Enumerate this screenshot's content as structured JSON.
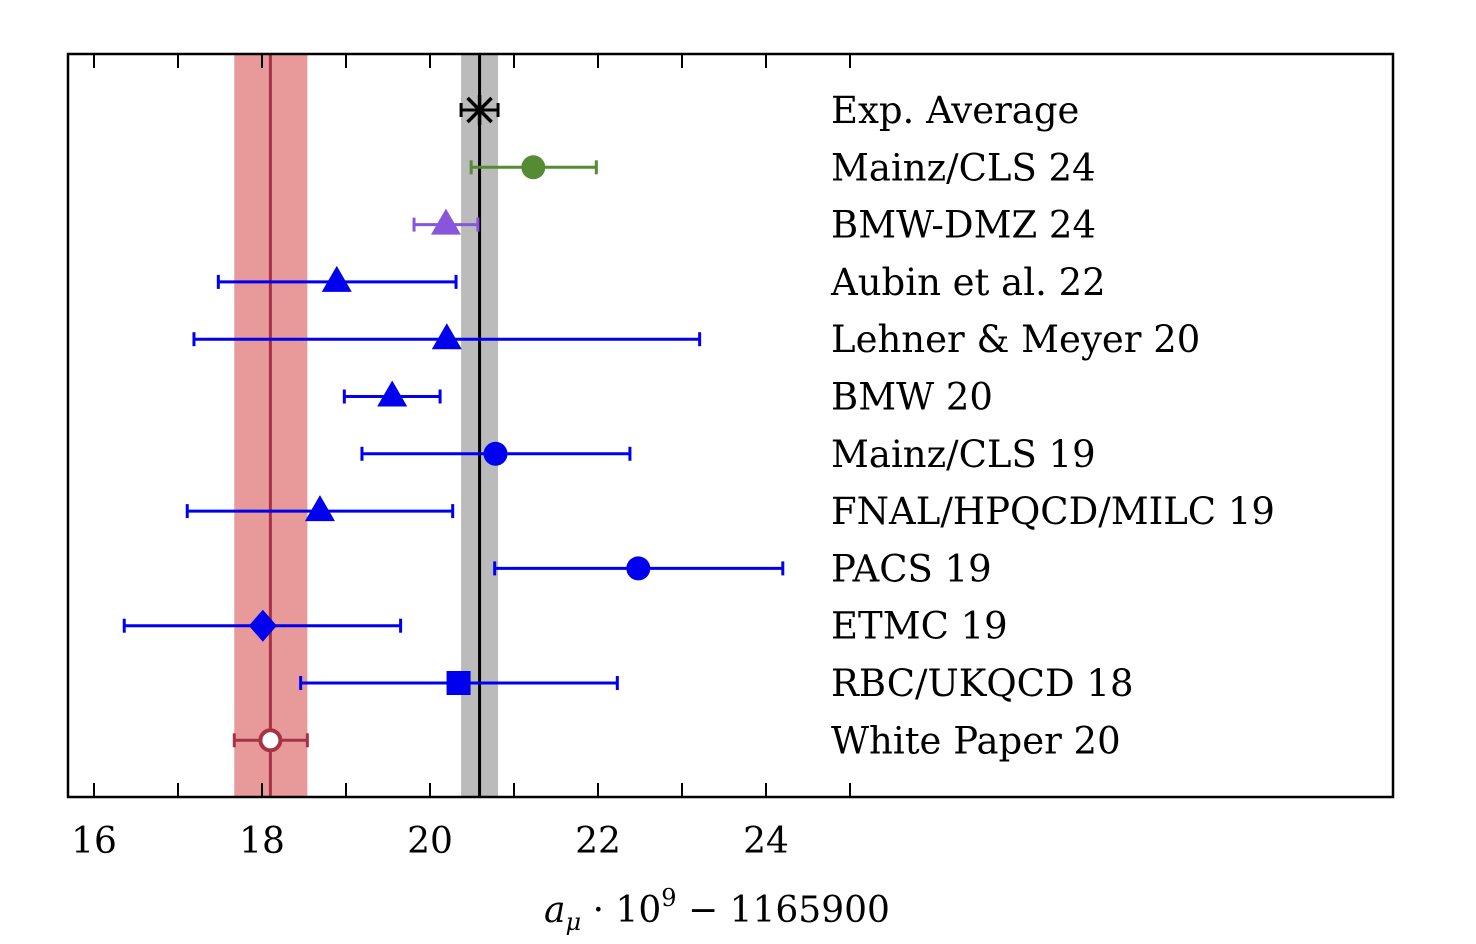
{
  "chart_data": {
    "type": "scatter",
    "subtype": "forest-plot-horizontal-errorbars",
    "title": "",
    "xlabel": "a_μ · 10^9 − 1165900",
    "xlabel_parts": {
      "var": "a",
      "sub": "μ",
      "dot": " · 10",
      "sup": "9",
      "rest": " − 1165900"
    },
    "ylabel": "",
    "xlim": [
      15.7,
      31.5
    ],
    "x_ticks_major": [
      16,
      18,
      20,
      22,
      24
    ],
    "x_ticks_minor": [
      17,
      19,
      21,
      23,
      25
    ],
    "x_tick_labels": [
      "16",
      "18",
      "20",
      "22",
      "24"
    ],
    "grid": false,
    "reference_bands": [
      {
        "name": "Exp. Average band",
        "center": 20.59,
        "low": 20.37,
        "high": 20.81,
        "band_color": "#bbbbbb",
        "line_color": "#000000"
      },
      {
        "name": "White Paper 20 band",
        "center": 18.1,
        "low": 17.67,
        "high": 18.54,
        "band_color": "#e89999",
        "line_color": "#a83245"
      }
    ],
    "series": [
      {
        "name": "Exp. Average",
        "value": 20.59,
        "err_low": 20.37,
        "err_high": 20.81,
        "marker": "asterisk",
        "color": "#000000"
      },
      {
        "name": "Mainz/CLS 24",
        "value": 21.23,
        "err_low": 20.49,
        "err_high": 21.98,
        "marker": "circle",
        "color": "#548b33"
      },
      {
        "name": "BMW-DMZ 24",
        "value": 20.19,
        "err_low": 19.81,
        "err_high": 20.57,
        "marker": "triangle",
        "color": "#8855dd"
      },
      {
        "name": "Aubin et al. 22",
        "value": 18.89,
        "err_low": 17.48,
        "err_high": 20.31,
        "marker": "triangle",
        "color": "#0000ee"
      },
      {
        "name": "Lehner & Meyer 20",
        "value": 20.2,
        "err_low": 17.19,
        "err_high": 23.21,
        "marker": "triangle",
        "color": "#0000ee"
      },
      {
        "name": "BMW 20",
        "value": 19.55,
        "err_low": 18.98,
        "err_high": 20.12,
        "marker": "triangle",
        "color": "#0000ee"
      },
      {
        "name": "Mainz/CLS 19",
        "value": 20.78,
        "err_low": 19.19,
        "err_high": 22.38,
        "marker": "circle",
        "color": "#0000ee"
      },
      {
        "name": "FNAL/HPQCD/MILC 19",
        "value": 18.69,
        "err_low": 17.11,
        "err_high": 20.27,
        "marker": "triangle",
        "color": "#0000ee"
      },
      {
        "name": "PACS 19",
        "value": 22.48,
        "err_low": 20.77,
        "err_high": 24.2,
        "marker": "circle",
        "color": "#0000ee"
      },
      {
        "name": "ETMC 19",
        "value": 18.01,
        "err_low": 16.36,
        "err_high": 19.65,
        "marker": "diamond",
        "color": "#0000ee"
      },
      {
        "name": "RBC/UKQCD 18",
        "value": 20.34,
        "err_low": 18.46,
        "err_high": 22.23,
        "marker": "square",
        "color": "#0000ee"
      },
      {
        "name": "White Paper 20",
        "value": 18.1,
        "err_low": 17.67,
        "err_high": 18.54,
        "marker": "open-circle",
        "color": "#a83245"
      }
    ]
  }
}
